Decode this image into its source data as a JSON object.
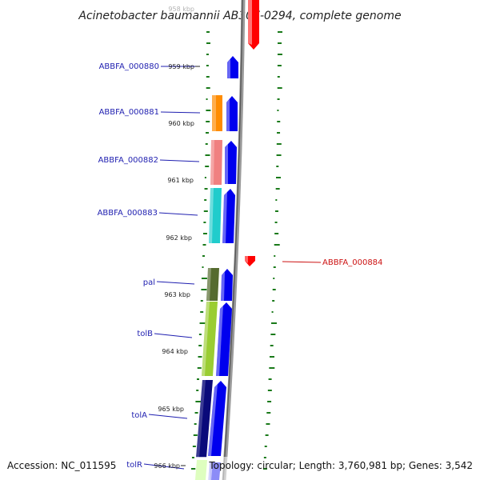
{
  "title": "Acinetobacter baumannii AB307-0294, complete genome",
  "footer": {
    "accession": "Accession: NC_011595",
    "topology": "Topology: circular; Length: 3,760,981 bp; Genes: 3,542"
  },
  "ticks": [
    "958 kbp",
    "959 kbp",
    "960 kbp",
    "961 kbp",
    "962 kbp",
    "963 kbp",
    "964 kbp",
    "965 kbp",
    "966 kbp"
  ],
  "genes": [
    {
      "label": "ABBFA_000880",
      "strand": "forward",
      "color": "#1111ee"
    },
    {
      "label": "ABBFA_000881",
      "strand": "forward",
      "color": "#ff8c00"
    },
    {
      "label": "ABBFA_000882",
      "strand": "forward",
      "color": "#f08080"
    },
    {
      "label": "ABBFA_000883",
      "strand": "forward",
      "color": "#1fcfcf"
    },
    {
      "label": "ABBFA_000884",
      "strand": "reverse",
      "color": "#ff1a1a"
    },
    {
      "label": "pal",
      "strand": "forward",
      "color": "#556b2f"
    },
    {
      "label": "tolB",
      "strand": "forward",
      "color": "#9acd32"
    },
    {
      "label": "tolA",
      "strand": "forward",
      "color": "#0a0a7a"
    },
    {
      "label": "tolR",
      "strand": "forward",
      "color": "#7cfc00"
    }
  ],
  "colors": {
    "forward_strand": "#1111ee",
    "reverse_strand": "#ff1a1a",
    "backbone": "#888888",
    "gc_skew": "#1a7a1a"
  }
}
